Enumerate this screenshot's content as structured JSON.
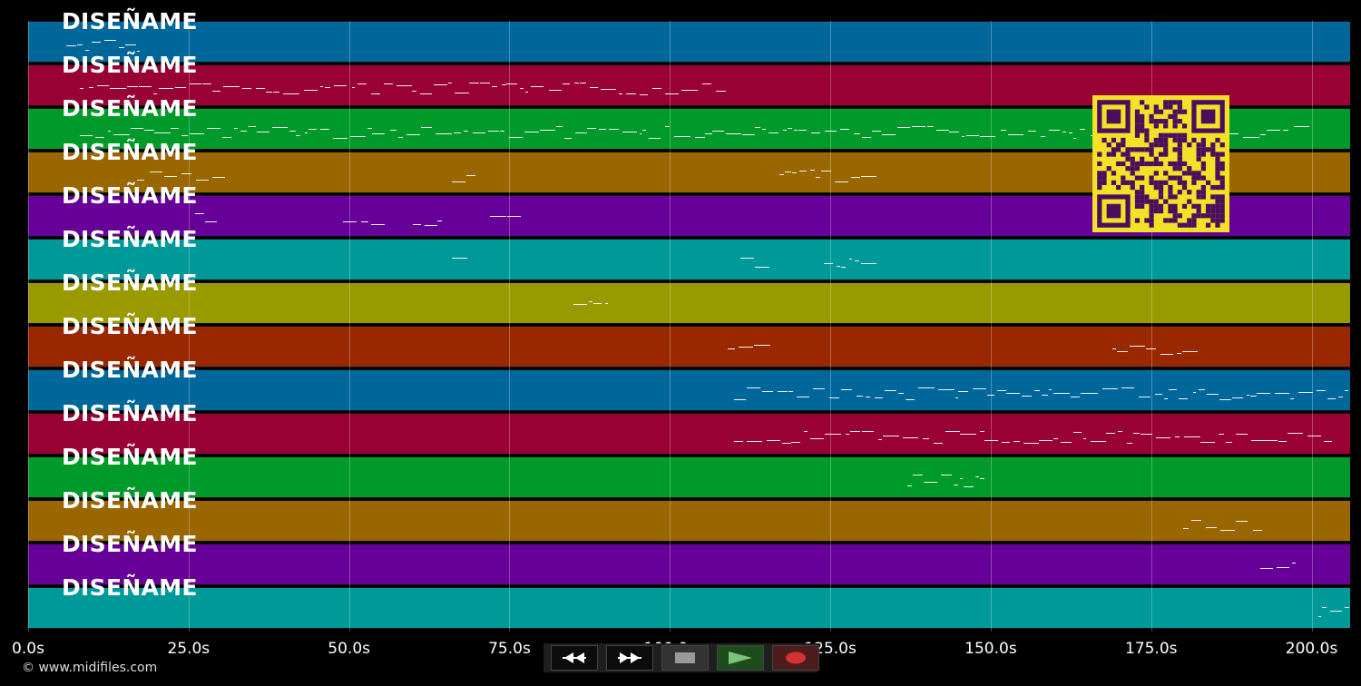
{
  "timeline": {
    "x_axis_ticks": [
      "0.0s",
      "25.0s",
      "50.0s",
      "75.0s",
      "100.0s",
      "125.0s",
      "150.0s",
      "175.0s",
      "200.0s"
    ],
    "tick_values_s": [
      0,
      25,
      50,
      75,
      100,
      125,
      150,
      175,
      200
    ],
    "time_range_s": [
      0,
      206
    ]
  },
  "tracks": [
    {
      "label": "DISEÑAME",
      "color": "#00679a"
    },
    {
      "label": "DISEÑAME",
      "color": "#990033"
    },
    {
      "label": "DISEÑAME",
      "color": "#009a2b"
    },
    {
      "label": "DISEÑAME",
      "color": "#996600"
    },
    {
      "label": "DISEÑAME",
      "color": "#660099"
    },
    {
      "label": "DISEÑAME",
      "color": "#009999"
    },
    {
      "label": "DISEÑAME",
      "color": "#999900"
    },
    {
      "label": "DISEÑAME",
      "color": "#992700"
    },
    {
      "label": "DISEÑAME",
      "color": "#00679a"
    },
    {
      "label": "DISEÑAME",
      "color": "#990033"
    },
    {
      "label": "DISEÑAME",
      "color": "#009a2b"
    },
    {
      "label": "DISEÑAME",
      "color": "#996600"
    },
    {
      "label": "DISEÑAME",
      "color": "#660099"
    },
    {
      "label": "DISEÑAME",
      "color": "#009999"
    }
  ],
  "transport": {
    "rewind_icon": "rewind-icon",
    "fast_forward_icon": "fast-forward-icon",
    "stop_icon": "stop-icon",
    "play_icon": "play-icon",
    "record_icon": "record-icon"
  },
  "footer": {
    "copyright": "© www.midifiles.com"
  },
  "qr_code": {
    "icon": "qr-code-icon"
  }
}
